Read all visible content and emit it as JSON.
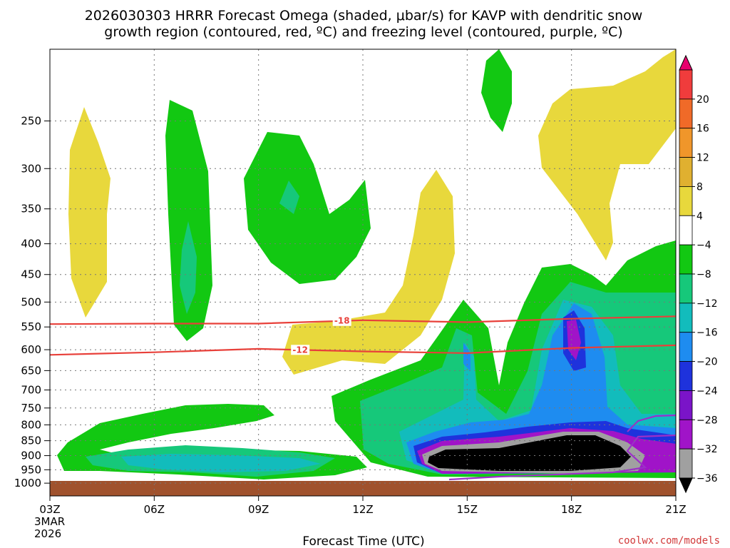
{
  "chart_data": {
    "type": "heatmap",
    "title_line1": "2026030303 HRRR Forecast Omega (shaded, μbar/s) for KAVP with dendritic snow",
    "title_line2": "growth region (contoured, red, ºC) and freezing level (contoured, purple, ºC)",
    "xlabel": "Forecast Time (UTC)",
    "x_ticks": [
      {
        "hour": 0,
        "label": "03Z"
      },
      {
        "hour": 3,
        "label": "06Z"
      },
      {
        "hour": 6,
        "label": "09Z"
      },
      {
        "hour": 9,
        "label": "12Z"
      },
      {
        "hour": 12,
        "label": "15Z"
      },
      {
        "hour": 15,
        "label": "18Z"
      },
      {
        "hour": 18,
        "label": "21Z"
      }
    ],
    "date_label": [
      "3MAR",
      "2026"
    ],
    "xlim": [
      0,
      18
    ],
    "ylim_hpa": [
      1050,
      190
    ],
    "y_ticks": [
      250,
      300,
      350,
      400,
      450,
      500,
      550,
      600,
      650,
      700,
      750,
      800,
      850,
      900,
      950,
      1000
    ],
    "colorbar": {
      "labels": [
        "20",
        "16",
        "12",
        "8",
        "4",
        "−4",
        "−8",
        "−12",
        "−16",
        "−20",
        "−24",
        "−28",
        "−32",
        "−36"
      ],
      "bins": [
        {
          "color": "#e8006e"
        },
        {
          "color": "#f03c3c"
        },
        {
          "color": "#f06a28"
        },
        {
          "color": "#f0962a"
        },
        {
          "color": "#e0b030"
        },
        {
          "color": "#e8d83c"
        },
        {
          "color": "#ffffff"
        },
        {
          "color": "#12c812"
        },
        {
          "color": "#16c87a"
        },
        {
          "color": "#12bcbc"
        },
        {
          "color": "#1e8cf0"
        },
        {
          "color": "#1e32dc"
        },
        {
          "color": "#7a14c8"
        },
        {
          "color": "#a014c8"
        },
        {
          "color": "#a0a0a0"
        },
        {
          "color": "#000000"
        }
      ]
    },
    "contours": [
      {
        "label": "-18",
        "color": "#e8403a",
        "label_hour": 8.4,
        "points": [
          [
            0,
            544
          ],
          [
            3,
            543
          ],
          [
            6,
            543
          ],
          [
            9,
            536
          ],
          [
            12,
            540
          ],
          [
            15,
            533
          ],
          [
            18,
            528
          ]
        ]
      },
      {
        "label": "-12",
        "color": "#e8403a",
        "label_hour": 7.2,
        "points": [
          [
            0,
            612
          ],
          [
            3,
            606
          ],
          [
            6,
            598
          ],
          [
            9,
            604
          ],
          [
            12,
            608
          ],
          [
            15,
            596
          ],
          [
            18,
            590
          ]
        ]
      }
    ],
    "freezing_color": "#9b30c8",
    "ground_color": "#a0522d",
    "credit": "coolwx.com/models"
  }
}
